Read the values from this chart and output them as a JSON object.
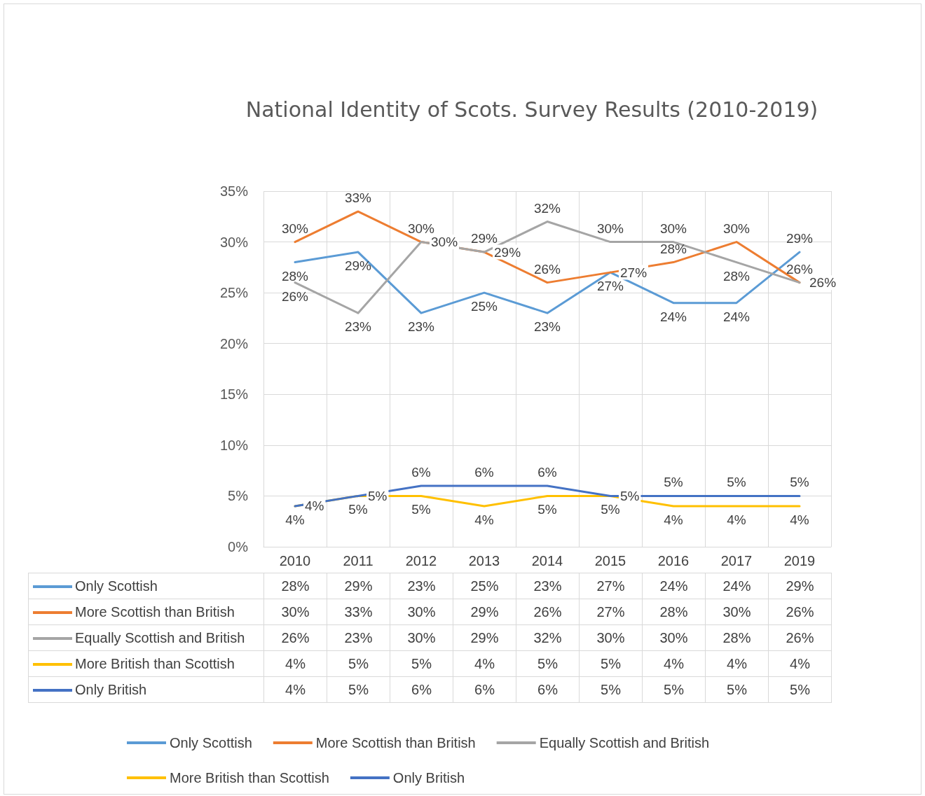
{
  "chart_data": {
    "type": "line",
    "title": "National Identity of Scots. Survey Results (2010-2019)",
    "categories": [
      "2010",
      "2011",
      "2012",
      "2013",
      "2014",
      "2015",
      "2016",
      "2017",
      "2019"
    ],
    "series": [
      {
        "name": "Only Scottish",
        "color": "#5b9bd5",
        "values": [
          28,
          29,
          23,
          25,
          23,
          27,
          24,
          24,
          29
        ],
        "value_labels": [
          "28%",
          "29%",
          "23%",
          "25%",
          "23%",
          "27%",
          "24%",
          "24%",
          "29%"
        ]
      },
      {
        "name": "More Scottish than British",
        "color": "#ed7d31",
        "values": [
          30,
          33,
          30,
          29,
          26,
          27,
          28,
          30,
          26
        ],
        "value_labels": [
          "30%",
          "33%",
          "30%",
          "29%",
          "26%",
          "27%",
          "28%",
          "30%",
          "26%"
        ]
      },
      {
        "name": "Equally Scottish and British",
        "color": "#a5a5a5",
        "values": [
          26,
          23,
          30,
          29,
          32,
          30,
          30,
          28,
          26
        ],
        "value_labels": [
          "26%",
          "23%",
          "30%",
          "29%",
          "32%",
          "30%",
          "30%",
          "28%",
          "26%"
        ]
      },
      {
        "name": "More British than Scottish",
        "color": "#ffc000",
        "values": [
          4,
          5,
          5,
          4,
          5,
          5,
          4,
          4,
          4
        ],
        "value_labels": [
          "4%",
          "5%",
          "5%",
          "4%",
          "5%",
          "5%",
          "4%",
          "4%",
          "4%"
        ]
      },
      {
        "name": "Only British",
        "color": "#4472c4",
        "values": [
          4,
          5,
          6,
          6,
          6,
          5,
          5,
          5,
          5
        ],
        "value_labels": [
          "4%",
          "5%",
          "6%",
          "6%",
          "6%",
          "5%",
          "5%",
          "5%",
          "5%"
        ]
      }
    ],
    "ylim": [
      0,
      35
    ],
    "yticks": [
      {
        "value": 0,
        "label": "0%"
      },
      {
        "value": 5,
        "label": "5%"
      },
      {
        "value": 10,
        "label": "10%"
      },
      {
        "value": 15,
        "label": "15%"
      },
      {
        "value": 20,
        "label": "20%"
      },
      {
        "value": 25,
        "label": "25%"
      },
      {
        "value": 30,
        "label": "30%"
      },
      {
        "value": 35,
        "label": "35%"
      }
    ],
    "grid": true,
    "legend": "bottom",
    "marker": "none",
    "line_style": "solid"
  }
}
